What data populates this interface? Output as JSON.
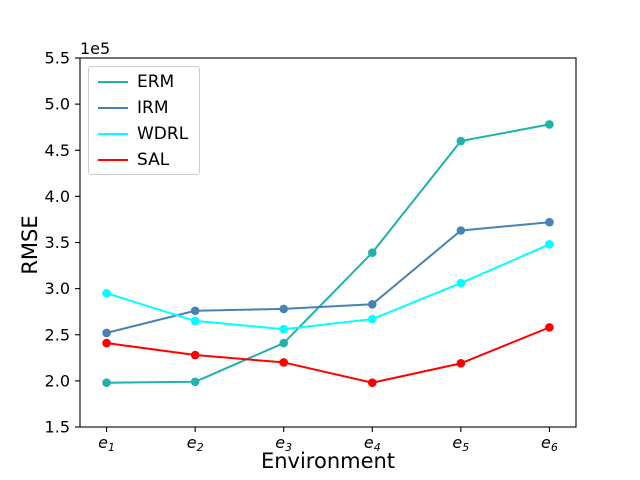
{
  "chart_data": {
    "type": "line",
    "title": "",
    "xlabel": "Environment",
    "ylabel": "RMSE",
    "offset_text": "1e5",
    "unit_scale": 100000,
    "categories": [
      "e1",
      "e2",
      "e3",
      "e4",
      "e5",
      "e6"
    ],
    "ylim": [
      1.5,
      5.5
    ],
    "yticks": [
      1.5,
      2.0,
      2.5,
      3.0,
      3.5,
      4.0,
      4.5,
      5.0,
      5.5
    ],
    "grid": false,
    "legend_position": "upper left",
    "marker": "o",
    "series": [
      {
        "name": "ERM",
        "color": "#20B2AA",
        "values": [
          1.98,
          1.99,
          2.41,
          3.39,
          4.6,
          4.78
        ]
      },
      {
        "name": "IRM",
        "color": "#4682B4",
        "values": [
          2.52,
          2.76,
          2.78,
          2.83,
          3.63,
          3.72
        ]
      },
      {
        "name": "WDRL",
        "color": "#00FFFF",
        "values": [
          2.95,
          2.65,
          2.56,
          2.67,
          3.06,
          3.48
        ]
      },
      {
        "name": "SAL",
        "color": "#FF0000",
        "values": [
          2.41,
          2.28,
          2.2,
          1.98,
          2.19,
          2.58
        ]
      }
    ]
  }
}
